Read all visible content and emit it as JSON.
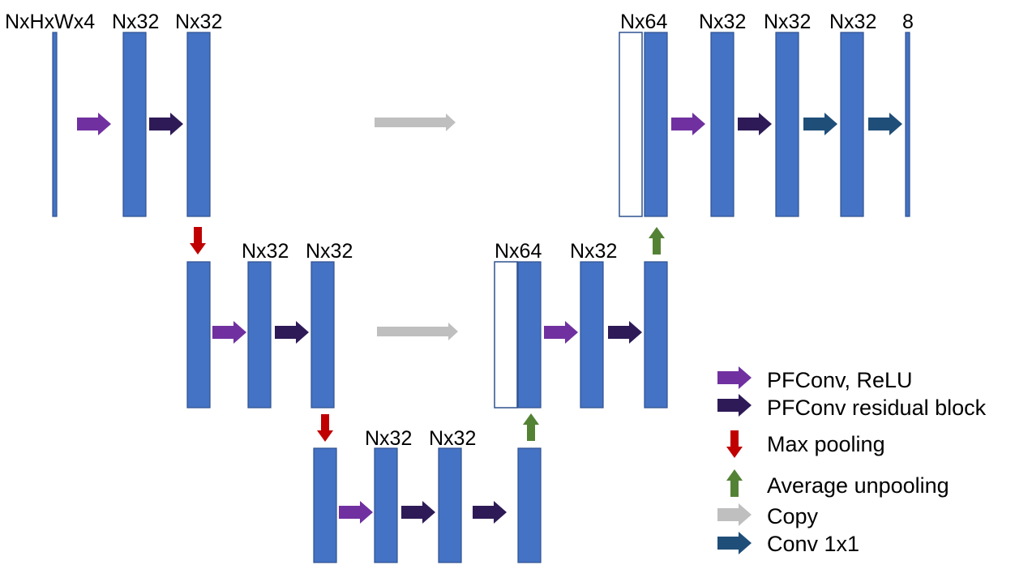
{
  "colors": {
    "block": "#4472c4",
    "block_border": "#2f528f",
    "pfconv_relu": "#7030a0",
    "pfconv_residual": "#2e1a57",
    "max_pooling": "#c00000",
    "average_unpooling": "#548235",
    "copy": "#bfbfbf",
    "conv1x1": "#1f4e79"
  },
  "labels": {
    "input": "NxHxWx4",
    "l0_a": "Nx32",
    "l0_b": "Nx32",
    "l1_a": "Nx32",
    "l1_b": "Nx32",
    "l2_a": "Nx32",
    "l2_b": "Nx32",
    "l1_concat": "Nx64",
    "l1_out": "Nx32",
    "l0_concat": "Nx64",
    "l0_out_a": "Nx32",
    "l0_out_b": "Nx32",
    "l0_out_c": "Nx32",
    "output": "8"
  },
  "legend": [
    {
      "arrow": "right",
      "color": "#7030a0",
      "label": "PFConv, ReLU"
    },
    {
      "arrow": "right",
      "color": "#2e1a57",
      "label": "PFConv residual block"
    },
    {
      "arrow": "down",
      "color": "#c00000",
      "label": "Max pooling"
    },
    {
      "arrow": "up",
      "color": "#548235",
      "label": "Average unpooling"
    },
    {
      "arrow": "right",
      "color": "#bfbfbf",
      "label": "Copy"
    },
    {
      "arrow": "right",
      "color": "#1f4e79",
      "label": "Conv 1x1"
    }
  ]
}
